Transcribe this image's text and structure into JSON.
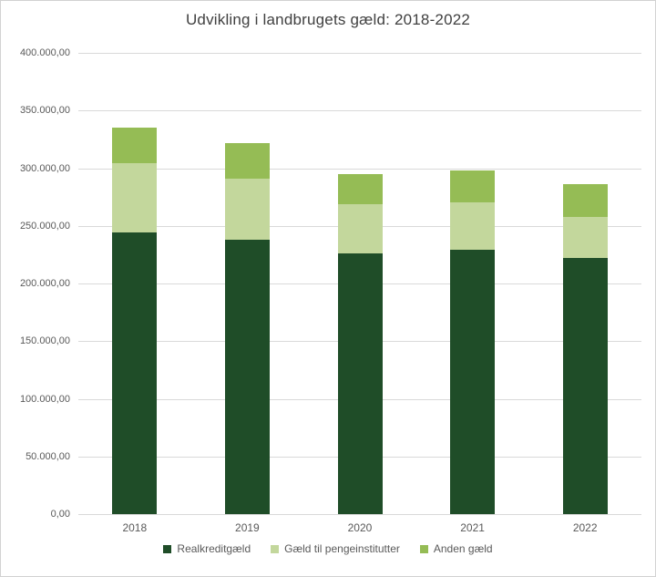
{
  "title": "Udvikling i landbrugets gæld: 2018-2022",
  "colors": {
    "realkredit": "#1F4D28",
    "pengeinstitutter": "#C3D79C",
    "anden": "#95BC55",
    "gridline": "#D9D9D9",
    "axis_text": "#595959",
    "title_text": "#404040",
    "legend_text": "#595959"
  },
  "chart_data": {
    "type": "bar",
    "stacked": true,
    "title": "Udvikling i landbrugets gæld: 2018-2022",
    "categories": [
      "2018",
      "2019",
      "2020",
      "2021",
      "2022"
    ],
    "series": [
      {
        "name": "Realkreditgæld",
        "color_key": "realkredit",
        "values": [
          244000,
          238000,
          226000,
          229000,
          222000
        ]
      },
      {
        "name": "Gæld til pengeinstitutter",
        "color_key": "pengeinstitutter",
        "values": [
          60000,
          53000,
          43000,
          41000,
          36000
        ]
      },
      {
        "name": "Anden gæld",
        "color_key": "anden",
        "values": [
          31000,
          31000,
          26000,
          28000,
          28000
        ]
      }
    ],
    "totals": [
      335000,
      322000,
      295000,
      298000,
      286000
    ],
    "xlabel": "",
    "ylabel": "",
    "ylim": [
      0,
      400000
    ],
    "ytick_step": 50000,
    "ytick_labels": [
      "0,00",
      "50.000,00",
      "100.000,00",
      "150.000,00",
      "200.000,00",
      "250.000,00",
      "300.000,00",
      "350.000,00",
      "400.000,00"
    ],
    "grid": true,
    "legend_position": "bottom"
  }
}
